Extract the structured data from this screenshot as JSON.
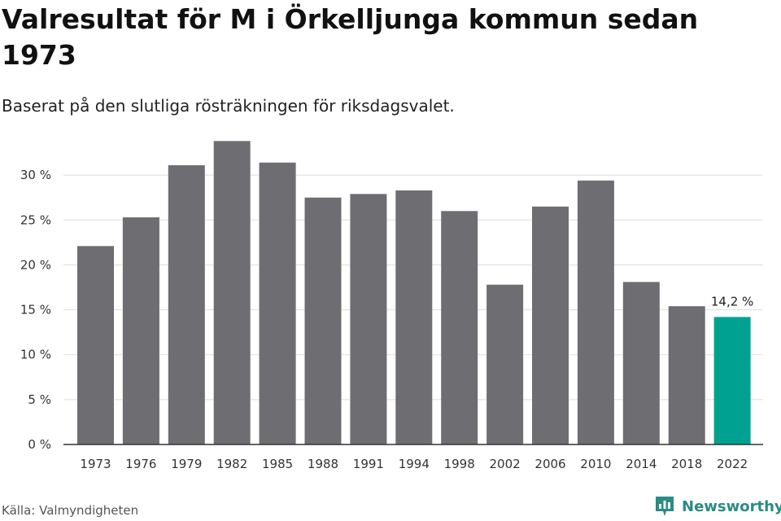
{
  "header": {
    "title": "Valresultat för M i Örkelljunga kommun sedan 1973",
    "subtitle": "Baserat på den slutliga rösträkningen för riksdagsvalet."
  },
  "footer": {
    "source": "Källa: Valmyndigheten",
    "brand": "Newsworthy",
    "brand_icon": "bar-chart-logo-icon"
  },
  "colors": {
    "bar": "#6e6d72",
    "highlight": "#00a191",
    "grid": "#dddddd",
    "axis": "#333333",
    "brand": "#2a8c84"
  },
  "chart_data": {
    "type": "bar",
    "title": "Valresultat för M i Örkelljunga kommun sedan 1973",
    "subtitle": "Baserat på den slutliga rösträkningen för riksdagsvalet.",
    "categories": [
      "1973",
      "1976",
      "1979",
      "1982",
      "1985",
      "1988",
      "1991",
      "1994",
      "1998",
      "2002",
      "2006",
      "2010",
      "2014",
      "2018",
      "2022"
    ],
    "values": [
      22.1,
      25.3,
      31.1,
      33.8,
      31.4,
      27.5,
      27.9,
      28.3,
      26.0,
      17.8,
      26.5,
      29.4,
      18.1,
      15.4,
      14.2
    ],
    "ylim": [
      0,
      35
    ],
    "yticks": [
      0,
      5,
      10,
      15,
      20,
      25,
      30
    ],
    "ytick_labels": [
      "0 %",
      "5 %",
      "10 %",
      "15 %",
      "20 %",
      "25 %",
      "30 %"
    ],
    "highlight_index": 14,
    "annotation": {
      "index": 14,
      "text": "14,2 %"
    },
    "grid": true,
    "legend": "none"
  }
}
